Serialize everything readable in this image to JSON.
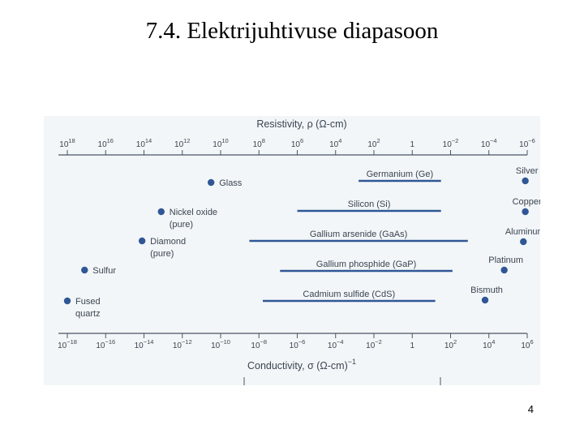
{
  "slide": {
    "title": "7.4. Elektrijuhtivuse diapasoon",
    "page_number": "4"
  },
  "chart_data": {
    "type": "scatter",
    "resistivity_axis": {
      "label": "Resistivity, ρ (Ω-cm)",
      "ticks": [
        {
          "base": "10",
          "exp": "18",
          "log": 18
        },
        {
          "base": "10",
          "exp": "16",
          "log": 16
        },
        {
          "base": "10",
          "exp": "14",
          "log": 14
        },
        {
          "base": "10",
          "exp": "12",
          "log": 12
        },
        {
          "base": "10",
          "exp": "10",
          "log": 10
        },
        {
          "base": "10",
          "exp": "8",
          "log": 8
        },
        {
          "base": "10",
          "exp": "6",
          "log": 6
        },
        {
          "base": "10",
          "exp": "4",
          "log": 4
        },
        {
          "base": "10",
          "exp": "2",
          "log": 2
        },
        {
          "base": "1",
          "exp": "",
          "log": 0
        },
        {
          "base": "10",
          "exp": "−2",
          "log": -2
        },
        {
          "base": "10",
          "exp": "−4",
          "log": -4
        },
        {
          "base": "10",
          "exp": "−6",
          "log": -6
        },
        {
          "base": "10",
          "exp": "−8",
          "log": -8
        }
      ]
    },
    "conductivity_axis": {
      "label": "Conductivity, σ (Ω-cm)",
      "label_exp": "−1",
      "ticks": [
        {
          "base": "10",
          "exp": "−18",
          "log": -18
        },
        {
          "base": "10",
          "exp": "−16",
          "log": -16
        },
        {
          "base": "10",
          "exp": "−14",
          "log": -14
        },
        {
          "base": "10",
          "exp": "−12",
          "log": -12
        },
        {
          "base": "10",
          "exp": "−10",
          "log": -10
        },
        {
          "base": "10",
          "exp": "−8",
          "log": -8
        },
        {
          "base": "10",
          "exp": "−6",
          "log": -6
        },
        {
          "base": "10",
          "exp": "−4",
          "log": -4
        },
        {
          "base": "10",
          "exp": "−2",
          "log": -2
        },
        {
          "base": "1",
          "exp": "",
          "log": 0
        },
        {
          "base": "10",
          "exp": "2",
          "log": 2
        },
        {
          "base": "10",
          "exp": "4",
          "log": 4
        },
        {
          "base": "10",
          "exp": "6",
          "log": 6
        }
      ]
    },
    "materials": [
      {
        "lines": [
          "Glass"
        ],
        "log_sigma": -10.5,
        "label_side": "right"
      },
      {
        "lines": [
          "Nickel oxide",
          "(pure)"
        ],
        "log_sigma": -13.1,
        "label_side": "right"
      },
      {
        "lines": [
          "Diamond",
          "(pure)"
        ],
        "log_sigma": -14.1,
        "label_side": "right"
      },
      {
        "lines": [
          "Sulfur"
        ],
        "log_sigma": -17.1,
        "label_side": "right"
      },
      {
        "lines": [
          "Fused",
          "quartz"
        ],
        "log_sigma": -18.0,
        "label_side": "right"
      },
      {
        "lines": [
          "Silver"
        ],
        "log_sigma": 5.9,
        "label_side": "above"
      },
      {
        "lines": [
          "Copper"
        ],
        "log_sigma": 5.9,
        "label_side": "above"
      },
      {
        "lines": [
          "Aluminum"
        ],
        "log_sigma": 5.8,
        "label_side": "above"
      },
      {
        "lines": [
          "Platinum"
        ],
        "log_sigma": 4.8,
        "label_side": "above"
      },
      {
        "lines": [
          "Bismuth"
        ],
        "log_sigma": 3.8,
        "label_side": "above"
      }
    ],
    "semiconductors": [
      {
        "name": "Germanium (Ge)",
        "log_sigma_min": -2.8,
        "log_sigma_max": 1.5
      },
      {
        "name": "Silicon (Si)",
        "log_sigma_min": -6.0,
        "log_sigma_max": 1.5
      },
      {
        "name": "Gallium arsenide (GaAs)",
        "log_sigma_min": -8.5,
        "log_sigma_max": 2.9
      },
      {
        "name": "Gallium phosphide (GaP)",
        "log_sigma_min": -6.9,
        "log_sigma_max": 2.1
      },
      {
        "name": "Cadmium sulfide (CdS)",
        "log_sigma_min": -7.8,
        "log_sigma_max": 1.2
      }
    ]
  }
}
